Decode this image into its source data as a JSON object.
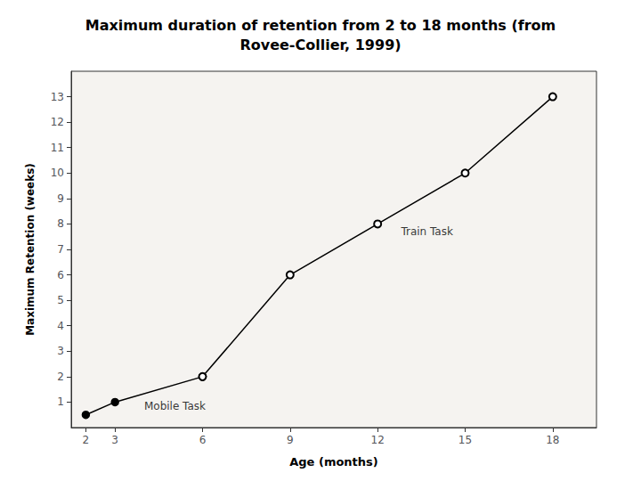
{
  "chart_data": {
    "type": "line",
    "title": "Maximum duration of retention from 2 to 18 months (from\nRovee-Collier, 1999)",
    "xlabel": "Age (months)",
    "ylabel": "Maximum Retention (weeks)",
    "series": [
      {
        "name": "Mobile Task",
        "x": [
          2,
          3,
          6
        ],
        "values": [
          0.5,
          1,
          2
        ],
        "color": "#000000",
        "marker": "circle"
      },
      {
        "name": "Train Task",
        "x": [
          6,
          9,
          12,
          15,
          18
        ],
        "values": [
          2,
          6,
          8,
          10,
          13
        ],
        "color": "#000000",
        "marker": "hollow_circle"
      }
    ],
    "annotations": [
      {
        "text": "Mobile Task",
        "x": 4.0,
        "y": 0.85
      },
      {
        "text": "Train Task",
        "x": 12.8,
        "y": 7.7
      }
    ],
    "xlim": [
      1.5,
      19.5
    ],
    "xticks": [
      2,
      3,
      6,
      9,
      12,
      15,
      18
    ],
    "ylim": [
      0,
      14
    ],
    "yticks": [
      1,
      2,
      3,
      4,
      5,
      6,
      7,
      8,
      9,
      10,
      11,
      12,
      13
    ],
    "grid": false
  }
}
